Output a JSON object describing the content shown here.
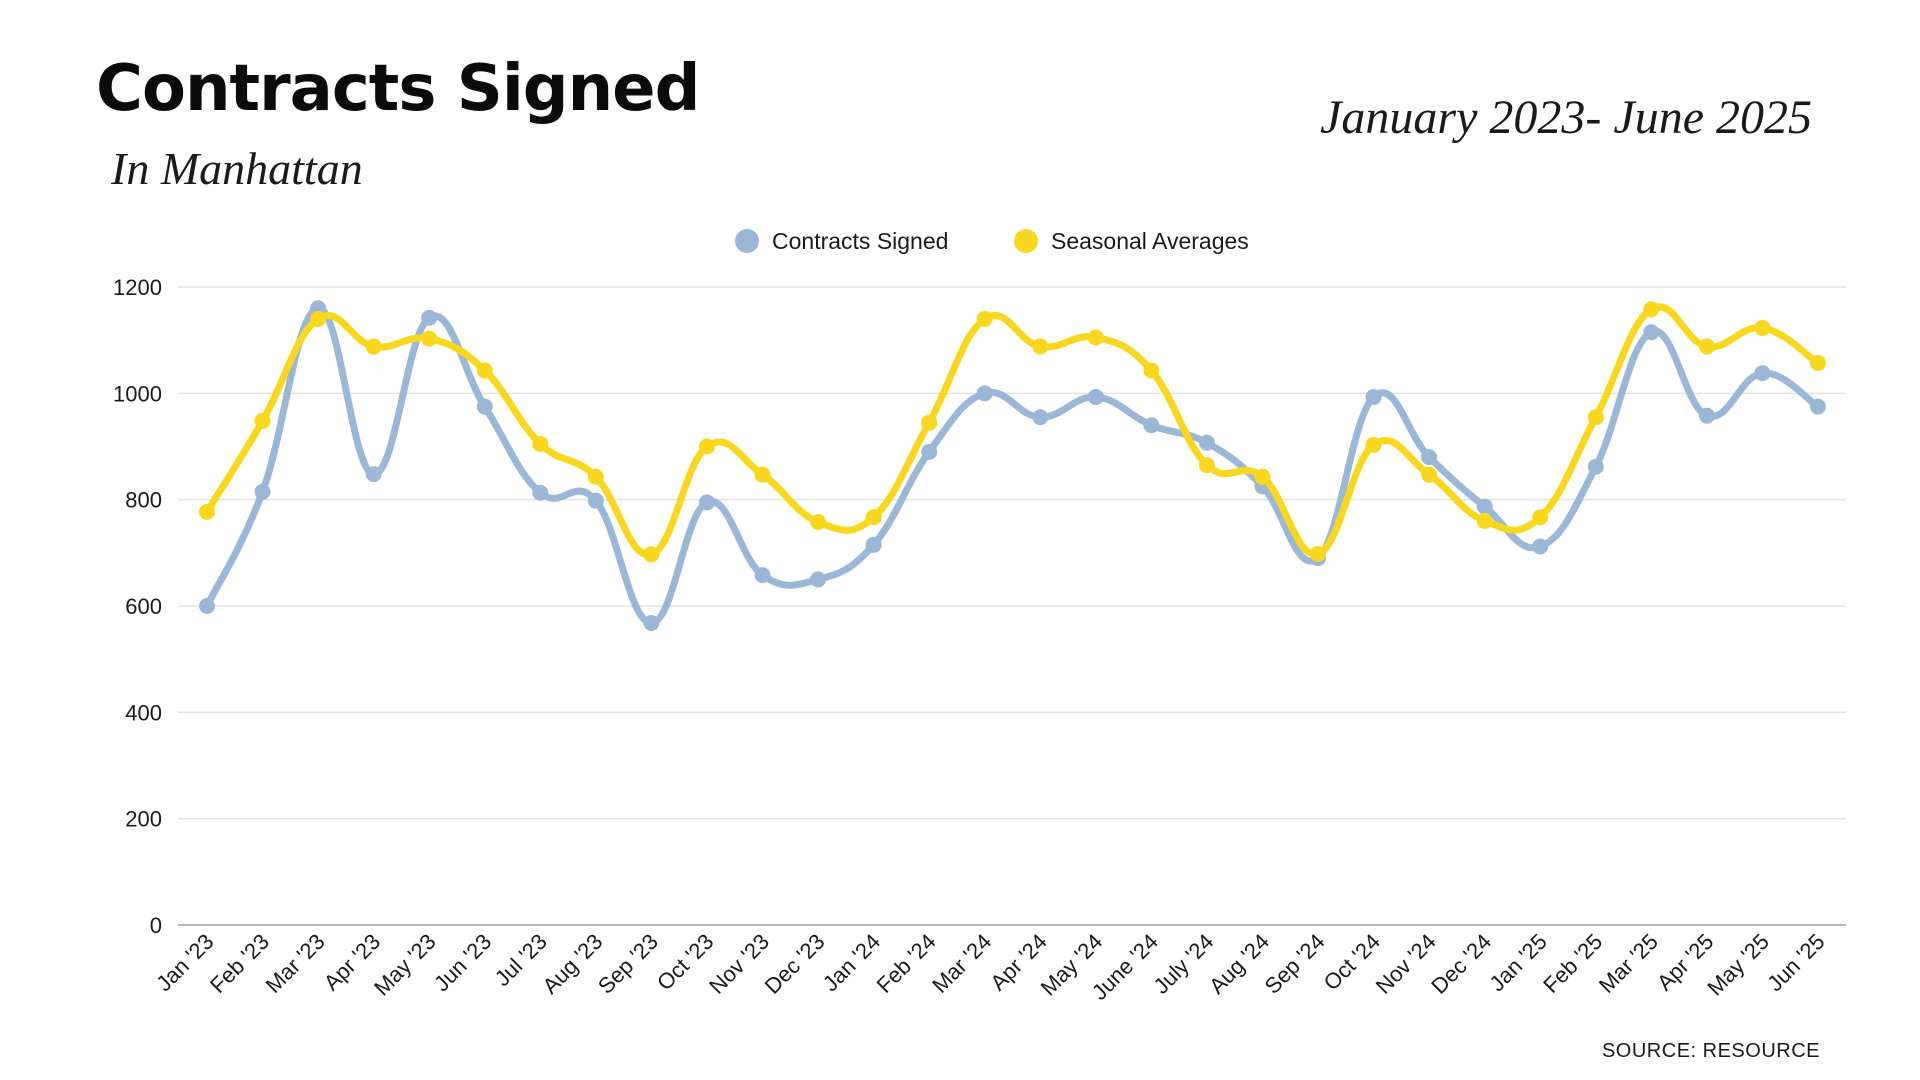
{
  "header": {
    "title": "Contracts Signed",
    "subtitle": "In Manhattan",
    "date_range": "January 2023- June 2025"
  },
  "footer": {
    "source": "SOURCE: RESOURCE"
  },
  "colors": {
    "contracts": "#9bb7d7",
    "seasonal": "#f9d71c",
    "grid": "#e3e3e3",
    "axis": "#b5b5b5",
    "text": "#1a1a1a"
  },
  "chart_data": {
    "type": "line",
    "title": "Contracts Signed",
    "subtitle": "In Manhattan",
    "xlabel": "",
    "ylabel": "",
    "ylim": [
      0,
      1200
    ],
    "yticks": [
      0,
      200,
      400,
      600,
      800,
      1000,
      1200
    ],
    "grid": true,
    "legend_position": "top-center",
    "categories": [
      "Jan '23",
      "Feb '23",
      "Mar '23",
      "Apr '23",
      "May '23",
      "Jun '23",
      "Jul '23",
      "Aug '23",
      "Sep '23",
      "Oct '23",
      "Nov '23",
      "Dec '23",
      "Jan '24",
      "Feb '24",
      "Mar '24",
      "Apr '24",
      "May '24",
      "June '24",
      "July '24",
      "Aug '24",
      "Sep '24",
      "Oct '24",
      "Nov '24",
      "Dec '24",
      "Jan '25",
      "Feb '25",
      "Mar '25",
      "Apr '25",
      "May '25",
      "Jun '25"
    ],
    "series": [
      {
        "name": "Contracts Signed",
        "color": "#9bb7d7",
        "values": [
          600,
          815,
          1160,
          848,
          1142,
          975,
          813,
          798,
          568,
          795,
          658,
          650,
          715,
          890,
          1000,
          955,
          993,
          940,
          907,
          825,
          690,
          993,
          880,
          787,
          712,
          862,
          1115,
          958,
          1038,
          975
        ]
      },
      {
        "name": "Seasonal Averages",
        "color": "#f9d71c",
        "values": [
          777,
          948,
          1140,
          1088,
          1103,
          1043,
          905,
          843,
          697,
          900,
          847,
          758,
          767,
          945,
          1140,
          1088,
          1105,
          1043,
          865,
          843,
          698,
          903,
          847,
          760,
          767,
          955,
          1158,
          1088,
          1123,
          1057
        ]
      }
    ]
  }
}
